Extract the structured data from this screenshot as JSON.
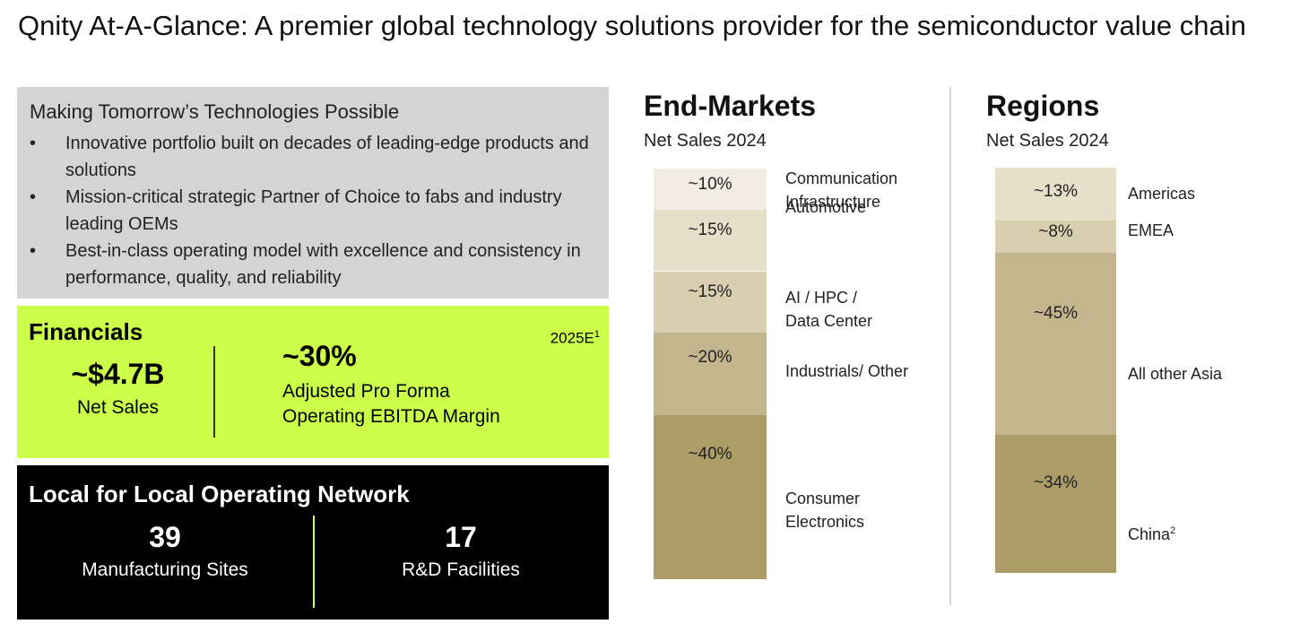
{
  "title": "Qnity At-A-Glance: A premier global technology solutions provider for the semiconductor value chain",
  "intro": {
    "heading": "Making Tomorrow’s Technologies Possible",
    "bullet_char": "•",
    "bullets": [
      "Innovative portfolio built on decades of leading-edge products and solutions",
      "Mission-critical strategic Partner of Choice to fabs and industry leading OEMs",
      "Best-in-class operating model with excellence and consistency in performance, quality, and reliability"
    ]
  },
  "financials": {
    "heading": "Financials",
    "year": "2025E",
    "year_footnote": "1",
    "net_sales_value": "~$4.7B",
    "net_sales_label": "Net Sales",
    "ebitda_value": "~30%",
    "ebitda_label_1": "Adjusted Pro Forma",
    "ebitda_label_2": "Operating EBITDA Margin"
  },
  "network": {
    "heading": "Local for Local Operating Network",
    "manufacturing_count": "39",
    "manufacturing_label": "Manufacturing Sites",
    "rd_count": "17",
    "rd_label": "R&D Facilities"
  },
  "end_markets": {
    "title": "End-Markets",
    "subtitle": "Net Sales 2024",
    "segments": [
      {
        "label": "~10%",
        "share": 10,
        "color": "#f1ede2",
        "category": [
          "Communication",
          "Infrastructure"
        ],
        "footnote": ""
      },
      {
        "label": "~15%",
        "share": 15,
        "color": "#e6dfca",
        "category": [
          "Automotive"
        ],
        "footnote": ""
      },
      {
        "label": "~15%",
        "share": 15,
        "color": "#d8cfb1",
        "category": [
          "AI / HPC /",
          "Data Center"
        ],
        "footnote": ""
      },
      {
        "label": "~20%",
        "share": 20,
        "color": "#c3b68e",
        "category": [
          "Industrials/ Other"
        ],
        "footnote": ""
      },
      {
        "label": "~40%",
        "share": 40,
        "color": "#ac9c68",
        "category": [
          "Consumer",
          "Electronics"
        ],
        "footnote": ""
      }
    ]
  },
  "regions": {
    "title": "Regions",
    "subtitle": "Net Sales 2024",
    "segments": [
      {
        "label": "~13%",
        "share": 13,
        "color": "#e6dfca",
        "category": [
          "Americas"
        ],
        "footnote": ""
      },
      {
        "label": "~8%",
        "share": 8,
        "color": "#d8cfb1",
        "category": [
          "EMEA"
        ],
        "footnote": ""
      },
      {
        "label": "~45%",
        "share": 45,
        "color": "#c3b68e",
        "category": [
          "All other Asia"
        ],
        "footnote": ""
      },
      {
        "label": "~34%",
        "share": 34,
        "color": "#ac9c68",
        "category": [
          "China"
        ],
        "footnote": "2"
      }
    ]
  },
  "colors": {
    "financials_bg": "#ccff4a",
    "intro_bg": "#d4d4d4",
    "network_bg": "#000000"
  }
}
